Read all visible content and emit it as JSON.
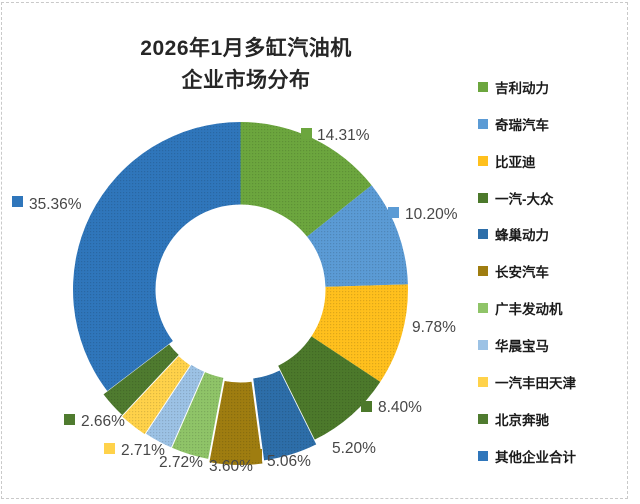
{
  "page": {
    "background": "#ffffff",
    "border_color": "#c9c9c9",
    "border_style": "dashed"
  },
  "chart_data": {
    "type": "pie",
    "donut": true,
    "title": "2026年1月多缸汽油机 企业市场分布",
    "title_lines": [
      "2026年1月多缸汽油机",
      "企业市场分布"
    ],
    "categories": [
      "吉利动力",
      "奇瑞汽车",
      "比亚迪",
      "一汽-大众",
      "蜂巢动力",
      "长安汽车",
      "广丰发动机",
      "华晨宝马",
      "一汽丰田天津",
      "北京奔驰",
      "其他企业合计"
    ],
    "values": [
      14.31,
      10.2,
      9.78,
      8.4,
      5.2,
      5.06,
      3.6,
      2.72,
      2.71,
      2.66,
      35.36
    ],
    "labels": [
      "14.31%",
      "10.20%",
      "9.78%",
      "8.40%",
      "5.20%",
      "5.06%",
      "3.60%",
      "2.72%",
      "2.71%",
      "2.66%",
      "35.36%"
    ],
    "colors": [
      "#6CA63E",
      "#5B9BD5",
      "#FFC01D",
      "#4C792B",
      "#2D6EA9",
      "#9F7D10",
      "#8FC468",
      "#9CC2E5",
      "#FFD24A",
      "#4F7B2F",
      "#2F76BB"
    ],
    "label_text_color": "#474747",
    "start_angle_deg": 0,
    "direction": "clockwise",
    "inner_radius_ratio": 0.51,
    "legend_position": "right",
    "grid": false
  }
}
